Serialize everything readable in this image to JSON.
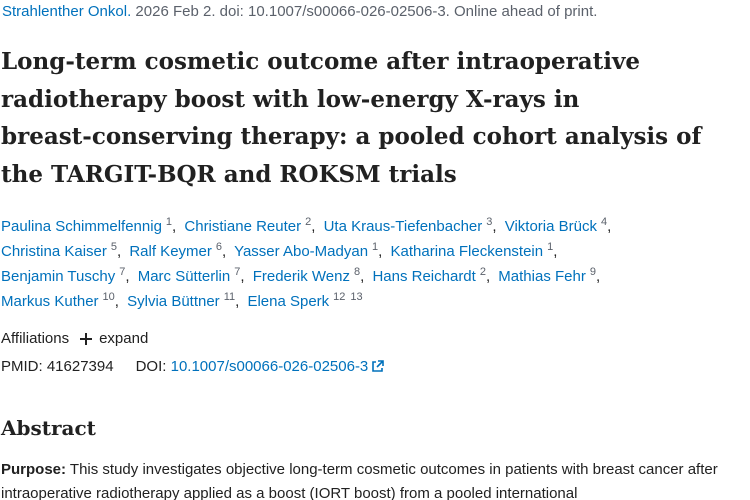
{
  "citation": {
    "journal": "Strahlenther Onkol.",
    "details": "2026 Feb 2. doi: 10.1007/s00066-026-02506-3. Online ahead of print."
  },
  "title": "Long-term cosmetic outcome after intraoperative radiotherapy boost with low-energy X-rays in breast-conserving therapy: a pooled cohort analysis of the TARGIT-BQR and ROKSM trials",
  "authors": [
    {
      "name": "Paulina Schimmelfennig",
      "affiliations": [
        "1"
      ]
    },
    {
      "name": "Christiane Reuter",
      "affiliations": [
        "2"
      ]
    },
    {
      "name": "Uta Kraus-Tiefenbacher",
      "affiliations": [
        "3"
      ]
    },
    {
      "name": "Viktoria Brück",
      "affiliations": [
        "4"
      ]
    },
    {
      "name": "Christina Kaiser",
      "affiliations": [
        "5"
      ]
    },
    {
      "name": "Ralf Keymer",
      "affiliations": [
        "6"
      ]
    },
    {
      "name": "Yasser Abo-Madyan",
      "affiliations": [
        "1"
      ]
    },
    {
      "name": "Katharina Fleckenstein",
      "affiliations": [
        "1"
      ]
    },
    {
      "name": "Benjamin Tuschy",
      "affiliations": [
        "7"
      ]
    },
    {
      "name": "Marc Sütterlin",
      "affiliations": [
        "7"
      ]
    },
    {
      "name": "Frederik Wenz",
      "affiliations": [
        "8"
      ]
    },
    {
      "name": "Hans Reichardt",
      "affiliations": [
        "2"
      ]
    },
    {
      "name": "Mathias Fehr",
      "affiliations": [
        "9"
      ]
    },
    {
      "name": "Markus Kuther",
      "affiliations": [
        "10"
      ]
    },
    {
      "name": "Sylvia Büttner",
      "affiliations": [
        "11"
      ]
    },
    {
      "name": "Elena Sperk",
      "affiliations": [
        "12",
        "13"
      ]
    }
  ],
  "affiliations_toggle": {
    "label": "Affiliations",
    "action": "expand"
  },
  "identifiers": {
    "pmid_label": "PMID:",
    "pmid": "41627394",
    "doi_label": "DOI:",
    "doi": "10.1007/s00066-026-02506-3"
  },
  "abstract": {
    "heading": "Abstract",
    "purpose_label": "Purpose:",
    "purpose_text": "This study investigates objective long-term cosmetic outcomes in patients with breast cancer after intraoperative radiotherapy applied as a boost (IORT boost) from a pooled international"
  }
}
